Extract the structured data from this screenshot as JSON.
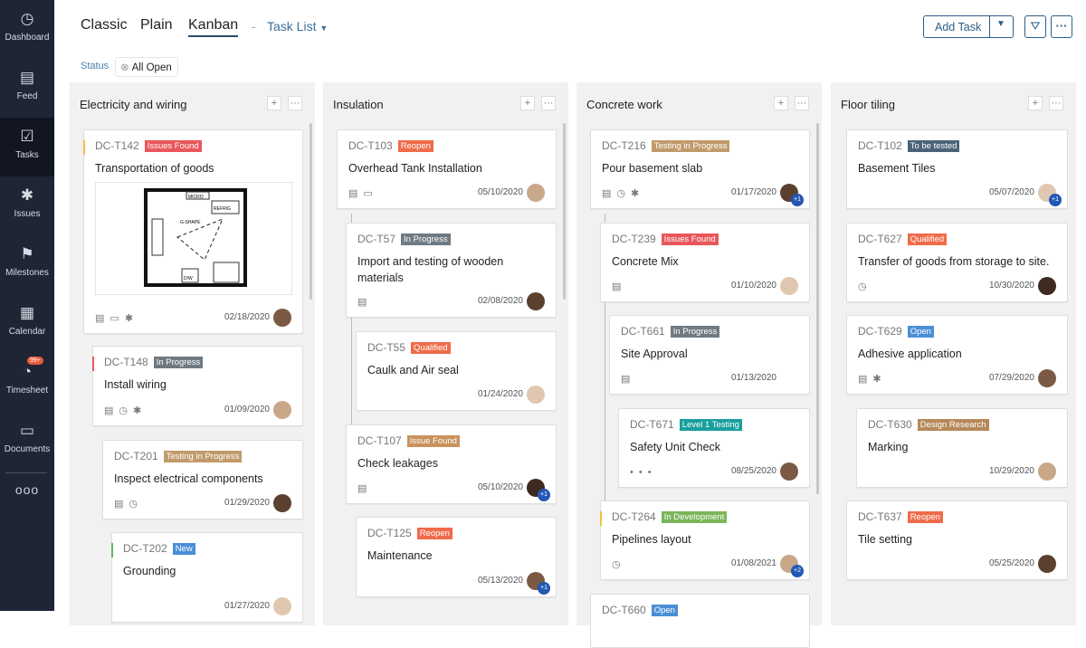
{
  "sidebar": {
    "items": [
      {
        "label": "Dashboard",
        "icon": "dashboard-gauge-icon"
      },
      {
        "label": "Feed",
        "icon": "feed-icon"
      },
      {
        "label": "Tasks",
        "icon": "tasks-clipboard-icon",
        "active": true
      },
      {
        "label": "Issues",
        "icon": "bug-icon"
      },
      {
        "label": "Milestones",
        "icon": "milestone-signpost-icon"
      },
      {
        "label": "Calendar",
        "icon": "calendar-icon"
      },
      {
        "label": "Timesheet",
        "icon": "timer-icon",
        "badge": "99+"
      },
      {
        "label": "Documents",
        "icon": "documents-icon"
      }
    ],
    "more": "ooo"
  },
  "header": {
    "views": [
      "Classic",
      "Plain",
      "Kanban"
    ],
    "active_view": "Kanban",
    "separator": "-",
    "list_label": "Task List",
    "add_task": "Add Task"
  },
  "filter": {
    "label": "Status",
    "chip": "All Open"
  },
  "colors": {
    "accent": "#2e5e86",
    "sidebar": "#1e2535"
  },
  "columns": [
    {
      "title": "Electricity and wiring",
      "cards": [
        {
          "id": "DC-T142",
          "status": "Issues Found",
          "color": "#e8575b",
          "title": "Transportation of goods",
          "date": "02/18/2020",
          "icons": [
            "feed",
            "comment",
            "bug"
          ],
          "has_image": true,
          "image_labels": [
            "MICRO",
            "REFRIG",
            "G-SHAPE",
            "D/W"
          ]
        },
        {
          "id": "DC-T148",
          "status": "In Progress",
          "color": "#6f7a82",
          "title": "Install wiring",
          "date": "01/09/2020",
          "icons": [
            "feed",
            "clock",
            "bug"
          ]
        },
        {
          "id": "DC-T201",
          "status": "Testing in Progress",
          "color": "#c19a6b",
          "title": "Inspect electrical components",
          "date": "01/29/2020",
          "icons": [
            "feed",
            "clock"
          ]
        },
        {
          "id": "DC-T202",
          "status": "New",
          "color": "#4a8fd6",
          "title": "Grounding",
          "date": "01/27/2020",
          "icons": []
        }
      ]
    },
    {
      "title": "Insulation",
      "cards": [
        {
          "id": "DC-T103",
          "status": "Reopen",
          "color": "#ef6b4a",
          "title": "Overhead Tank Installation",
          "date": "05/10/2020",
          "icons": [
            "feed",
            "comment"
          ]
        },
        {
          "id": "DC-T57",
          "status": "In Progress",
          "color": "#6f7a82",
          "title": "Import and testing of wooden materials",
          "date": "02/08/2020",
          "icons": [
            "feed"
          ]
        },
        {
          "id": "DC-T55",
          "status": "Qualified",
          "color": "#ef6b4a",
          "title": "Caulk and Air seal",
          "date": "01/24/2020",
          "icons": []
        },
        {
          "id": "DC-T107",
          "status": "Issue Found",
          "color": "#c9915c",
          "title": "Check leakages",
          "date": "05/10/2020",
          "icons": [
            "feed"
          ],
          "extra": "+1"
        },
        {
          "id": "DC-T125",
          "status": "Reopen",
          "color": "#ef6b4a",
          "title": "Maintenance",
          "date": "05/13/2020",
          "icons": [],
          "extra": "+1"
        }
      ]
    },
    {
      "title": "Concrete work",
      "cards": [
        {
          "id": "DC-T216",
          "status": "Testing in Progress",
          "color": "#c19a6b",
          "title": "Pour basement slab",
          "date": "01/17/2020",
          "icons": [
            "feed",
            "clock",
            "bug"
          ],
          "extra": "+1"
        },
        {
          "id": "DC-T239",
          "status": "Issues Found",
          "color": "#e8575b",
          "title": "Concrete Mix",
          "date": "01/10/2020",
          "icons": [
            "feed"
          ]
        },
        {
          "id": "DC-T661",
          "status": "In Progress",
          "color": "#6f7a82",
          "title": "Site Approval",
          "date": "01/13/2020",
          "icons": [
            "feed"
          ],
          "no_avatar": true
        },
        {
          "id": "DC-T671",
          "status": "Level 1 Testing",
          "color": "#1a9e9e",
          "title": "Safety Unit Check",
          "date": "08/25/2020",
          "icons": [
            "more"
          ]
        },
        {
          "id": "DC-T264",
          "status": "In Development",
          "color": "#7cb55a",
          "title": "Pipelines layout",
          "date": "01/08/2021",
          "icons": [
            "clock"
          ],
          "extra": "+2"
        },
        {
          "id": "DC-T660",
          "status": "Open",
          "color": "#4a8fd6",
          "title": "",
          "date": "",
          "icons": [],
          "no_avatar": true
        }
      ]
    },
    {
      "title": "Floor tiling",
      "cards": [
        {
          "id": "DC-T102",
          "status": "To be tested",
          "color": "#4a6378",
          "title": "Basement Tiles",
          "date": "05/07/2020",
          "icons": [],
          "extra": "+1"
        },
        {
          "id": "DC-T627",
          "status": "Qualified",
          "color": "#ef6b4a",
          "title": "Transfer of goods from storage to site.",
          "date": "10/30/2020",
          "icons": [
            "clock"
          ]
        },
        {
          "id": "DC-T629",
          "status": "Open",
          "color": "#4a8fd6",
          "title": "Adhesive application",
          "date": "07/29/2020",
          "icons": [
            "feed",
            "bug"
          ]
        },
        {
          "id": "DC-T630",
          "status": "Design Research",
          "color": "#b5895a",
          "title": "Marking",
          "date": "10/29/2020",
          "icons": []
        },
        {
          "id": "DC-T637",
          "status": "Reopen",
          "color": "#ef6b4a",
          "title": "Tile setting",
          "date": "05/25/2020",
          "icons": []
        }
      ]
    }
  ]
}
